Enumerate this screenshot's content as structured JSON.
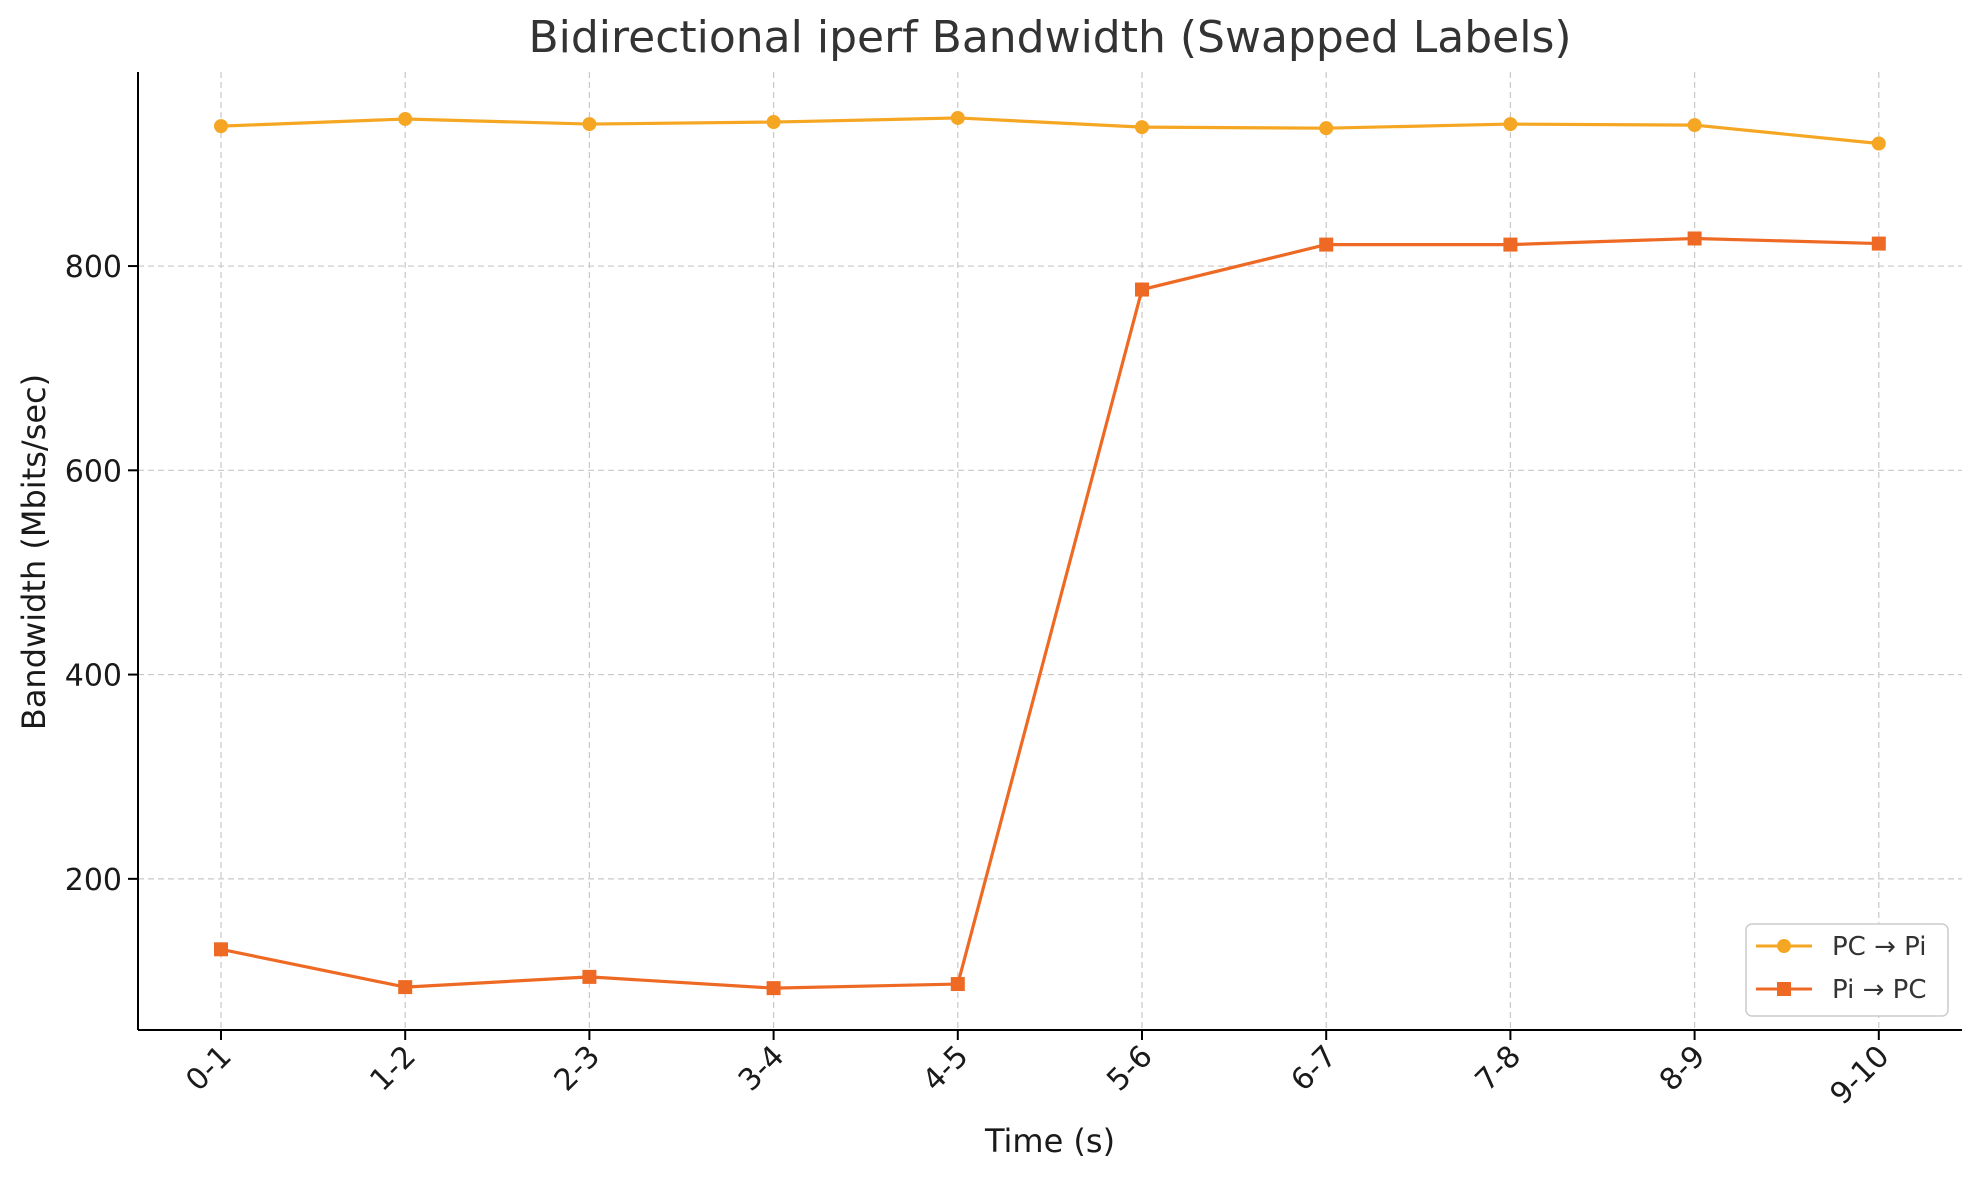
{
  "chart_data": {
    "type": "line",
    "title": "Bidirectional iperf Bandwidth (Swapped Labels)",
    "xlabel": "Time (s)",
    "ylabel": "Bandwidth (Mbits/sec)",
    "categories": [
      "0-1",
      "1-2",
      "2-3",
      "3-4",
      "4-5",
      "5-6",
      "6-7",
      "7-8",
      "8-9",
      "9-10"
    ],
    "yticks": [
      200,
      400,
      600,
      800
    ],
    "ylim": [
      52,
      990
    ],
    "grid": true,
    "legend_position": "bottom-right",
    "series": [
      {
        "name": "PC → Pi",
        "color": "#F5A623",
        "marker": "circle",
        "values": [
          937,
          944,
          939,
          941,
          945,
          936,
          935,
          939,
          938,
          920
        ]
      },
      {
        "name": "Pi → PC",
        "color": "#EE6A24",
        "marker": "square",
        "values": [
          131,
          94,
          104,
          93,
          97,
          777,
          821,
          821,
          827,
          822
        ]
      }
    ]
  }
}
